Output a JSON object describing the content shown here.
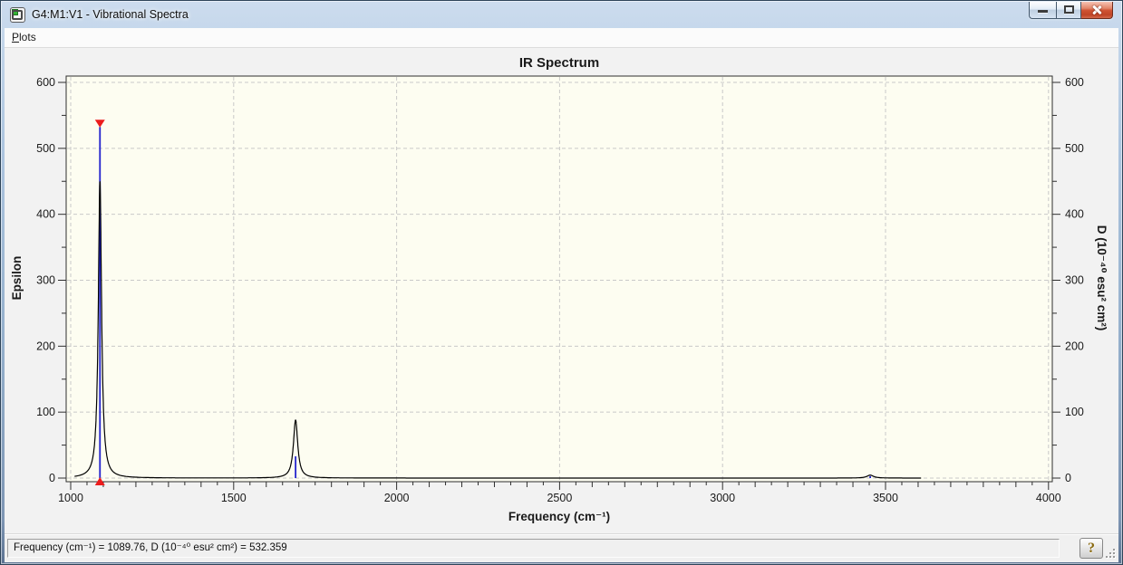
{
  "window": {
    "title": "G4:M1:V1 - Vibrational Spectra",
    "controls": [
      "minimize",
      "maximize",
      "close"
    ]
  },
  "menu": {
    "plots_initial": "P",
    "plots_rest": "lots"
  },
  "chart_data": {
    "type": "line",
    "title": "IR Spectrum",
    "xlabel": "Frequency (cm⁻¹)",
    "ylabel_left": "Epsilon",
    "ylabel_right": "D (10⁻⁴⁰ esu² cm²)",
    "xlim": [
      1000,
      4000
    ],
    "ylim": [
      0,
      600
    ],
    "x_major_ticks": [
      1000,
      1500,
      2000,
      2500,
      3000,
      3500,
      4000
    ],
    "x_minor_step": 50,
    "y_major_ticks": [
      0,
      100,
      200,
      300,
      400,
      500,
      600
    ],
    "y_minor_step": 50,
    "grid": "dashed",
    "curve_range": [
      1012,
      3610
    ],
    "peaks": [
      {
        "frequency": 1089.76,
        "curve_height": 450,
        "stick_value": 532.359,
        "width": 6,
        "selected": true
      },
      {
        "frequency": 1690,
        "curve_height": 88,
        "stick_value": 33,
        "width": 8,
        "selected": false
      },
      {
        "frequency": 3453,
        "curve_height": 4.5,
        "stick_value": 3,
        "width": 12,
        "selected": false
      }
    ],
    "colors": {
      "plot_background": "#fdfdf1",
      "curve": "#000000",
      "stick": "#2323cd",
      "selected_marker": "#ec1c1c",
      "grid": "#c9c9c9",
      "frame": "#2f2f2f",
      "text": "#1a1a1a"
    },
    "legend": null
  },
  "status_bar": {
    "text": "Frequency (cm⁻¹) = 1089.76, D (10⁻⁴⁰ esu² cm²) = 532.359",
    "help_label": "?"
  }
}
